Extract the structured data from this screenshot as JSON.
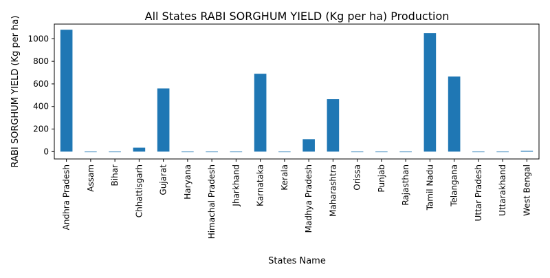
{
  "chart_data": {
    "type": "bar",
    "title": "All States RABI SORGHUM YIELD (Kg per ha) Production",
    "xlabel": "States Name",
    "ylabel": "RABI SORGHUM YIELD (Kg per ha)",
    "categories": [
      "Andhra Pradesh",
      "Assam",
      "Bihar",
      "Chhattisgarh",
      "Gujarat",
      "Haryana",
      "Himachal Pradesh",
      "Jharkhand",
      "Karnataka",
      "Kerala",
      "Madhya Pradesh",
      "Maharashtra",
      "Orissa",
      "Punjab",
      "Rajasthan",
      "Tamil Nadu",
      "Telangana",
      "Uttar Pradesh",
      "Uttarakhand",
      "West Bengal"
    ],
    "values": [
      1080,
      0,
      0,
      35,
      560,
      0,
      0,
      0,
      690,
      0,
      110,
      465,
      0,
      0,
      0,
      1050,
      665,
      0,
      0,
      8
    ],
    "yticks": [
      0,
      200,
      400,
      600,
      800,
      1000
    ],
    "ylim": [
      -65,
      1130
    ],
    "grid": false,
    "legend": "none",
    "bar_color": "#1f77b4"
  }
}
